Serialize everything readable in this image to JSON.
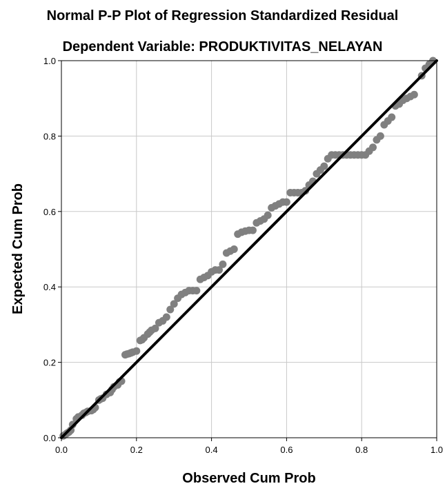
{
  "chart_data": {
    "type": "scatter",
    "title": "Normal P-P Plot of Regression Standardized Residual",
    "subtitle": "Dependent Variable: PRODUKTIVITAS_NELAYAN",
    "xlabel": "Observed Cum Prob",
    "ylabel": "Expected Cum Prob",
    "xlim": [
      0,
      1
    ],
    "ylim": [
      0,
      1
    ],
    "xticks": [
      "0.0",
      "0.2",
      "0.4",
      "0.6",
      "0.8",
      "1.0"
    ],
    "yticks": [
      "0.0",
      "0.2",
      "0.4",
      "0.6",
      "0.8",
      "1.0"
    ],
    "grid": true,
    "reference_line": [
      [
        0,
        0
      ],
      [
        1,
        1
      ]
    ],
    "colors": {
      "points": "#808080",
      "reference_line": "#000000",
      "grid": "#c8c8c8"
    },
    "points": [
      [
        0.005,
        0.005
      ],
      [
        0.01,
        0.008
      ],
      [
        0.015,
        0.012
      ],
      [
        0.02,
        0.015
      ],
      [
        0.025,
        0.02
      ],
      [
        0.03,
        0.035
      ],
      [
        0.04,
        0.05
      ],
      [
        0.045,
        0.055
      ],
      [
        0.055,
        0.06
      ],
      [
        0.06,
        0.065
      ],
      [
        0.065,
        0.067
      ],
      [
        0.07,
        0.07
      ],
      [
        0.08,
        0.072
      ],
      [
        0.085,
        0.075
      ],
      [
        0.09,
        0.08
      ],
      [
        0.1,
        0.1
      ],
      [
        0.105,
        0.103
      ],
      [
        0.11,
        0.105
      ],
      [
        0.12,
        0.115
      ],
      [
        0.13,
        0.12
      ],
      [
        0.135,
        0.128
      ],
      [
        0.14,
        0.135
      ],
      [
        0.15,
        0.14
      ],
      [
        0.155,
        0.148
      ],
      [
        0.16,
        0.15
      ],
      [
        0.17,
        0.22
      ],
      [
        0.175,
        0.222
      ],
      [
        0.18,
        0.223
      ],
      [
        0.185,
        0.225
      ],
      [
        0.19,
        0.227
      ],
      [
        0.2,
        0.23
      ],
      [
        0.21,
        0.258
      ],
      [
        0.215,
        0.26
      ],
      [
        0.22,
        0.265
      ],
      [
        0.23,
        0.275
      ],
      [
        0.235,
        0.28
      ],
      [
        0.24,
        0.285
      ],
      [
        0.25,
        0.29
      ],
      [
        0.26,
        0.305
      ],
      [
        0.27,
        0.31
      ],
      [
        0.28,
        0.32
      ],
      [
        0.29,
        0.34
      ],
      [
        0.3,
        0.355
      ],
      [
        0.31,
        0.37
      ],
      [
        0.32,
        0.38
      ],
      [
        0.33,
        0.385
      ],
      [
        0.34,
        0.39
      ],
      [
        0.35,
        0.39
      ],
      [
        0.36,
        0.39
      ],
      [
        0.37,
        0.42
      ],
      [
        0.38,
        0.425
      ],
      [
        0.39,
        0.43
      ],
      [
        0.4,
        0.44
      ],
      [
        0.41,
        0.445
      ],
      [
        0.42,
        0.445
      ],
      [
        0.43,
        0.46
      ],
      [
        0.44,
        0.49
      ],
      [
        0.45,
        0.495
      ],
      [
        0.46,
        0.5
      ],
      [
        0.47,
        0.54
      ],
      [
        0.48,
        0.545
      ],
      [
        0.49,
        0.548
      ],
      [
        0.5,
        0.55
      ],
      [
        0.51,
        0.55
      ],
      [
        0.52,
        0.57
      ],
      [
        0.53,
        0.575
      ],
      [
        0.54,
        0.58
      ],
      [
        0.55,
        0.59
      ],
      [
        0.56,
        0.61
      ],
      [
        0.57,
        0.615
      ],
      [
        0.58,
        0.62
      ],
      [
        0.59,
        0.625
      ],
      [
        0.6,
        0.625
      ],
      [
        0.61,
        0.65
      ],
      [
        0.62,
        0.65
      ],
      [
        0.63,
        0.65
      ],
      [
        0.64,
        0.65
      ],
      [
        0.65,
        0.655
      ],
      [
        0.66,
        0.67
      ],
      [
        0.67,
        0.68
      ],
      [
        0.68,
        0.7
      ],
      [
        0.69,
        0.71
      ],
      [
        0.7,
        0.72
      ],
      [
        0.71,
        0.74
      ],
      [
        0.72,
        0.75
      ],
      [
        0.73,
        0.75
      ],
      [
        0.74,
        0.75
      ],
      [
        0.75,
        0.75
      ],
      [
        0.76,
        0.75
      ],
      [
        0.77,
        0.75
      ],
      [
        0.78,
        0.75
      ],
      [
        0.79,
        0.75
      ],
      [
        0.8,
        0.75
      ],
      [
        0.81,
        0.75
      ],
      [
        0.82,
        0.76
      ],
      [
        0.83,
        0.77
      ],
      [
        0.84,
        0.79
      ],
      [
        0.85,
        0.8
      ],
      [
        0.86,
        0.83
      ],
      [
        0.87,
        0.84
      ],
      [
        0.88,
        0.85
      ],
      [
        0.89,
        0.88
      ],
      [
        0.9,
        0.885
      ],
      [
        0.91,
        0.895
      ],
      [
        0.92,
        0.9
      ],
      [
        0.93,
        0.905
      ],
      [
        0.94,
        0.91
      ],
      [
        0.96,
        0.96
      ],
      [
        0.97,
        0.98
      ],
      [
        0.98,
        0.99
      ],
      [
        0.99,
        1.0
      ]
    ]
  }
}
